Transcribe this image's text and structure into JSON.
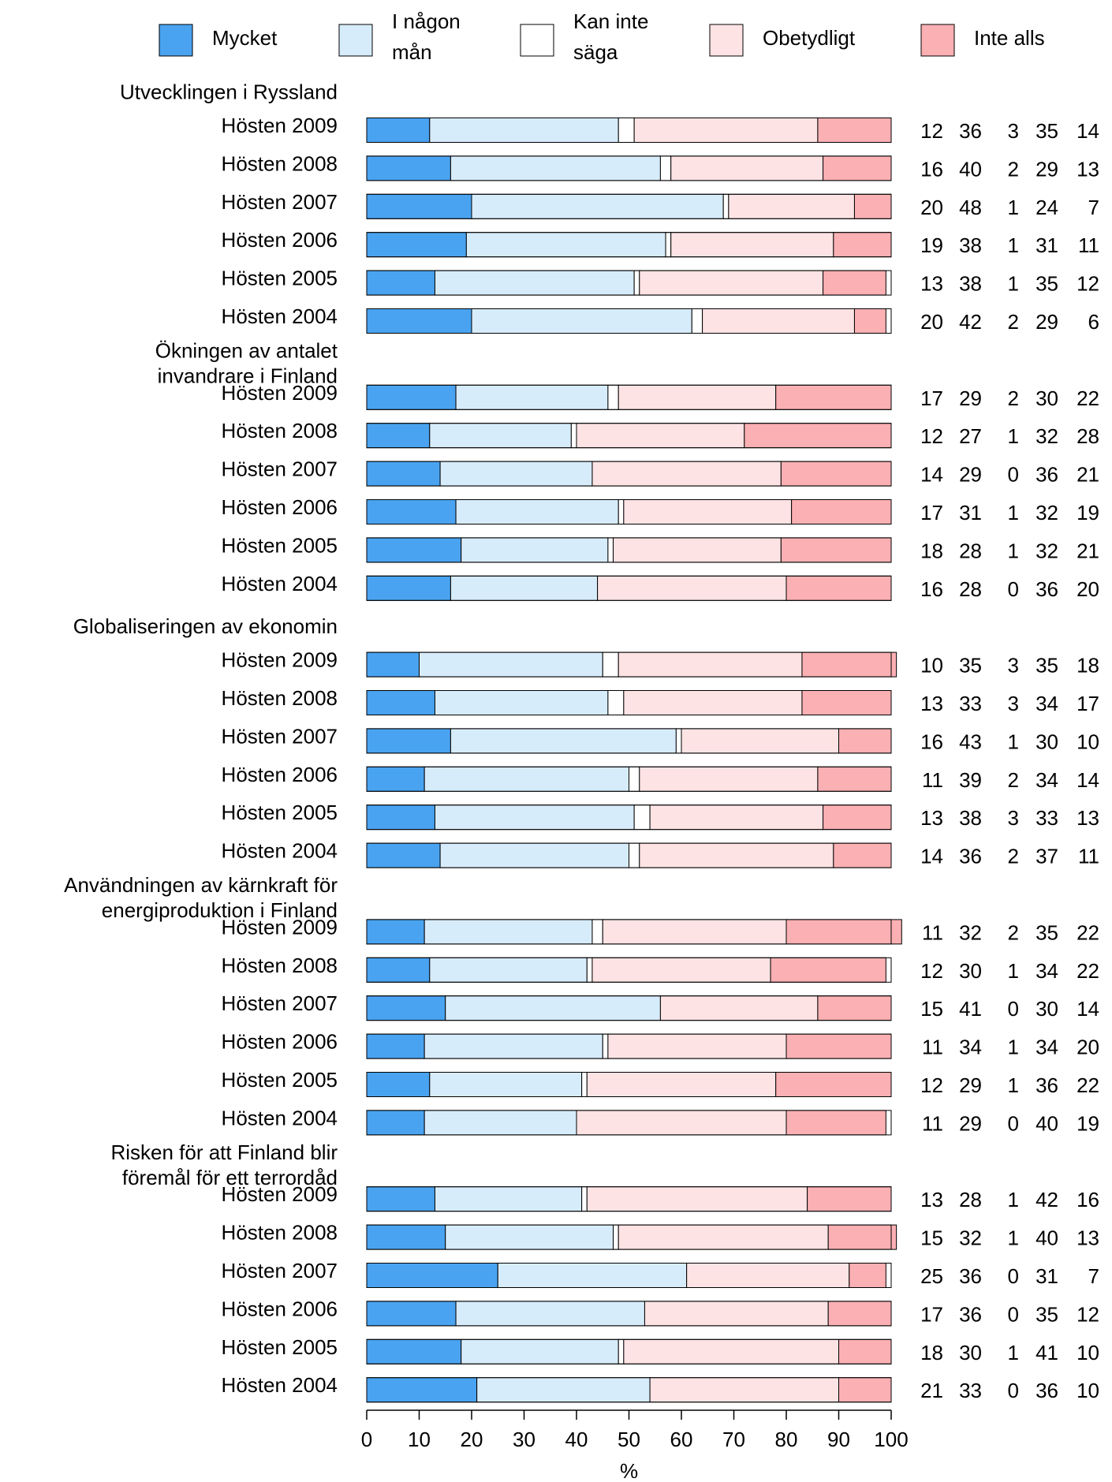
{
  "chart_data": {
    "type": "bar",
    "stacked": true,
    "orientation": "horizontal",
    "xlabel": "%",
    "xlim": [
      0,
      100
    ],
    "xticks": [
      0,
      10,
      20,
      30,
      40,
      50,
      60,
      70,
      80,
      90,
      100
    ],
    "legend_position": "top",
    "series": [
      {
        "name": "Mycket",
        "color": "#4aa3f0"
      },
      {
        "name": "I någon mån",
        "color": "#d7ecfb"
      },
      {
        "name": "Kan inte säga",
        "color": "#ffffff"
      },
      {
        "name": "Obetydligt",
        "color": "#fde3e4"
      },
      {
        "name": "Inte alls",
        "color": "#fbb0b3"
      }
    ],
    "groups": [
      {
        "title": "Utvecklingen i Ryssland",
        "rows": [
          {
            "label": "Hösten 2009",
            "values": [
              12,
              36,
              3,
              35,
              14
            ]
          },
          {
            "label": "Hösten 2008",
            "values": [
              16,
              40,
              2,
              29,
              13
            ]
          },
          {
            "label": "Hösten 2007",
            "values": [
              20,
              48,
              1,
              24,
              7
            ]
          },
          {
            "label": "Hösten 2006",
            "values": [
              19,
              38,
              1,
              31,
              11
            ]
          },
          {
            "label": "Hösten 2005",
            "values": [
              13,
              38,
              1,
              35,
              12
            ]
          },
          {
            "label": "Hösten 2004",
            "values": [
              20,
              42,
              2,
              29,
              6
            ]
          }
        ]
      },
      {
        "title": "Ökningen av antalet invandrare i Finland",
        "rows": [
          {
            "label": "Hösten 2009",
            "values": [
              17,
              29,
              2,
              30,
              22
            ]
          },
          {
            "label": "Hösten 2008",
            "values": [
              12,
              27,
              1,
              32,
              28
            ]
          },
          {
            "label": "Hösten 2007",
            "values": [
              14,
              29,
              0,
              36,
              21
            ]
          },
          {
            "label": "Hösten 2006",
            "values": [
              17,
              31,
              1,
              32,
              19
            ]
          },
          {
            "label": "Hösten 2005",
            "values": [
              18,
              28,
              1,
              32,
              21
            ]
          },
          {
            "label": "Hösten 2004",
            "values": [
              16,
              28,
              0,
              36,
              20
            ]
          }
        ]
      },
      {
        "title": "Globaliseringen av ekonomin",
        "rows": [
          {
            "label": "Hösten 2009",
            "values": [
              10,
              35,
              3,
              35,
              18
            ]
          },
          {
            "label": "Hösten 2008",
            "values": [
              13,
              33,
              3,
              34,
              17
            ]
          },
          {
            "label": "Hösten 2007",
            "values": [
              16,
              43,
              1,
              30,
              10
            ]
          },
          {
            "label": "Hösten 2006",
            "values": [
              11,
              39,
              2,
              34,
              14
            ]
          },
          {
            "label": "Hösten 2005",
            "values": [
              13,
              38,
              3,
              33,
              13
            ]
          },
          {
            "label": "Hösten 2004",
            "values": [
              14,
              36,
              2,
              37,
              11
            ]
          }
        ]
      },
      {
        "title": "Användningen av kärnkraft för energiproduktion i Finland",
        "rows": [
          {
            "label": "Hösten 2009",
            "values": [
              11,
              32,
              2,
              35,
              22
            ]
          },
          {
            "label": "Hösten 2008",
            "values": [
              12,
              30,
              1,
              34,
              22
            ]
          },
          {
            "label": "Hösten 2007",
            "values": [
              15,
              41,
              0,
              30,
              14
            ]
          },
          {
            "label": "Hösten 2006",
            "values": [
              11,
              34,
              1,
              34,
              20
            ]
          },
          {
            "label": "Hösten 2005",
            "values": [
              12,
              29,
              1,
              36,
              22
            ]
          },
          {
            "label": "Hösten 2004",
            "values": [
              11,
              29,
              0,
              40,
              19
            ]
          }
        ]
      },
      {
        "title": "Risken för att Finland blir föremål för ett terrordåd",
        "rows": [
          {
            "label": "Hösten 2009",
            "values": [
              13,
              28,
              1,
              42,
              16
            ]
          },
          {
            "label": "Hösten 2008",
            "values": [
              15,
              32,
              1,
              40,
              13
            ]
          },
          {
            "label": "Hösten 2007",
            "values": [
              25,
              36,
              0,
              31,
              7
            ]
          },
          {
            "label": "Hösten 2006",
            "values": [
              17,
              36,
              0,
              35,
              12
            ]
          },
          {
            "label": "Hösten 2005",
            "values": [
              18,
              30,
              1,
              41,
              10
            ]
          },
          {
            "label": "Hösten 2004",
            "values": [
              21,
              33,
              0,
              36,
              10
            ]
          }
        ]
      }
    ]
  }
}
